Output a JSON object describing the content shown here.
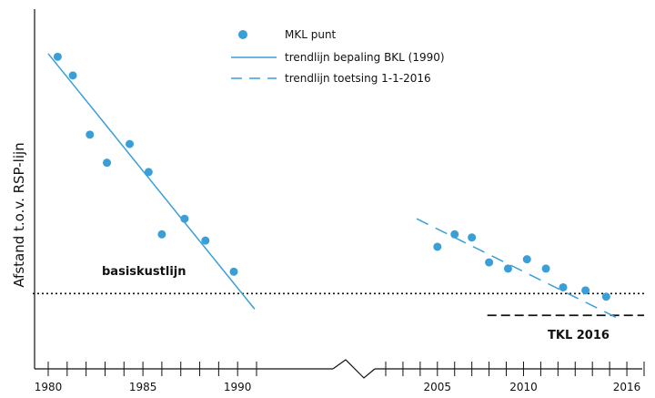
{
  "chart_data": {
    "type": "scatter",
    "ylabel": "Afstand t.o.v. RSP-lijn",
    "x_ticks": [
      1980,
      1985,
      1990,
      2005,
      2010,
      2016
    ],
    "x_ranges": [
      [
        1980,
        1991
      ],
      [
        2002,
        2017
      ]
    ],
    "axis_break": true,
    "legend_position": "top-center",
    "colors": {
      "series": "#3a9fd6",
      "reference": "#111111"
    },
    "series": [
      {
        "name": "MKL punt",
        "kind": "points",
        "points": [
          {
            "x": 1980.5,
            "y": 9.2
          },
          {
            "x": 1981.3,
            "y": 8.6
          },
          {
            "x": 1982.2,
            "y": 6.7
          },
          {
            "x": 1983.1,
            "y": 5.8
          },
          {
            "x": 1984.3,
            "y": 6.4
          },
          {
            "x": 1985.3,
            "y": 5.5
          },
          {
            "x": 1986.0,
            "y": 3.5
          },
          {
            "x": 1987.2,
            "y": 4.0
          },
          {
            "x": 1988.3,
            "y": 3.3
          },
          {
            "x": 1989.8,
            "y": 2.3
          },
          {
            "x": 2005.0,
            "y": 3.1
          },
          {
            "x": 2006.0,
            "y": 3.5
          },
          {
            "x": 2007.0,
            "y": 3.4
          },
          {
            "x": 2008.0,
            "y": 2.6
          },
          {
            "x": 2009.1,
            "y": 2.4
          },
          {
            "x": 2010.2,
            "y": 2.7
          },
          {
            "x": 2011.3,
            "y": 2.4
          },
          {
            "x": 2012.3,
            "y": 1.8
          },
          {
            "x": 2013.6,
            "y": 1.7
          },
          {
            "x": 2014.8,
            "y": 1.5
          }
        ]
      },
      {
        "name": "trendlijn bepaling BKL (1990)",
        "kind": "line",
        "points": [
          {
            "x": 1980.0,
            "y": 9.3
          },
          {
            "x": 1990.9,
            "y": 1.1
          }
        ]
      },
      {
        "name": "trendlijn toetsing 1-1-2016",
        "kind": "dashed-line",
        "points": [
          {
            "x": 2003.8,
            "y": 4.0
          },
          {
            "x": 2015.5,
            "y": 0.8
          }
        ]
      }
    ],
    "reference_lines": [
      {
        "label": "basiskustlijn",
        "y": 1.6,
        "x_from": 1979.9,
        "x_to": 2017.0,
        "style": "dotted"
      },
      {
        "label": "TKL 2016",
        "y": 0.9,
        "x_from": 2007.9,
        "x_to": 2017.0,
        "style": "dashed"
      }
    ]
  }
}
